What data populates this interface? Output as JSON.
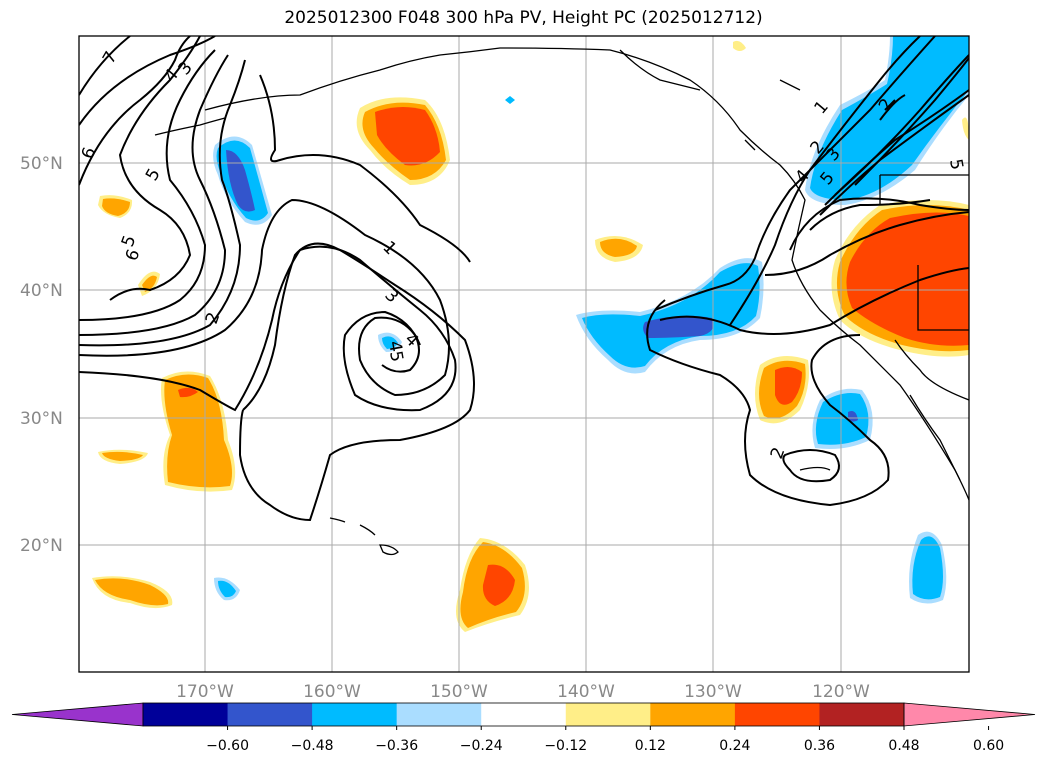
{
  "title": "2025012300 F048 300 hPa PV, Height PC (2025012712)",
  "lat_labels": [
    "50°N",
    "40°N",
    "30°N",
    "20°N"
  ],
  "lon_labels": [
    "170°W",
    "160°W",
    "150°W",
    "140°W",
    "130°W",
    "120°W"
  ],
  "colorbar": {
    "ticks": [
      "−0.60",
      "−0.48",
      "−0.36",
      "−0.24",
      "−0.12",
      "0.12",
      "0.24",
      "0.36",
      "0.48",
      "0.60"
    ],
    "colors": [
      "#9933cc",
      "#000099",
      "#3355cc",
      "#00bbff",
      "#aaddff",
      "#ffffff",
      "#ffee88",
      "#ffa500",
      "#ff4500",
      "#b22222",
      "#ff88aa"
    ]
  },
  "contour_labels": [
    "7",
    "6",
    "5",
    "4",
    "3",
    "6",
    "5",
    "6",
    "1",
    "2",
    "3",
    "4",
    "5",
    "4",
    "1",
    "2",
    "3",
    "4",
    "5",
    "5",
    "2",
    "2"
  ]
}
